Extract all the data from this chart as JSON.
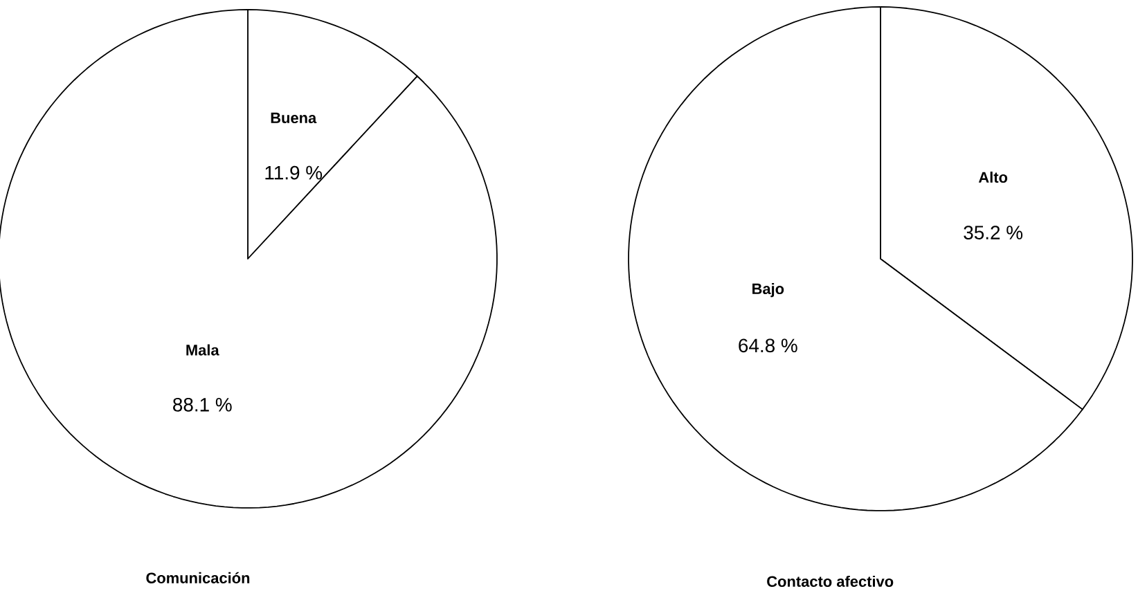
{
  "chart_data": [
    {
      "type": "pie",
      "title": "Comunicación",
      "categories": [
        "Buena",
        "Mala"
      ],
      "values": [
        11.9,
        88.1
      ],
      "value_labels": [
        "11.9 %",
        "88.1 %"
      ],
      "colors": [
        "#ffffff",
        "#ffffff"
      ]
    },
    {
      "type": "pie",
      "title": "Contacto afectivo",
      "categories": [
        "Alto",
        "Bajo"
      ],
      "values": [
        35.2,
        64.8
      ],
      "value_labels": [
        "35.2 %",
        "64.8 %"
      ],
      "colors": [
        "#ffffff",
        "#ffffff"
      ]
    }
  ]
}
